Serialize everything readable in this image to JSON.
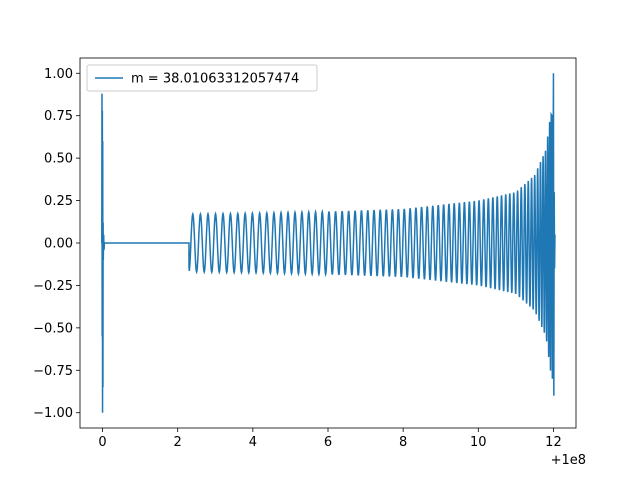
{
  "chart_data": {
    "type": "line",
    "title": "",
    "xlabel": "",
    "ylabel": "",
    "x_offset_label": "+1e8",
    "xlim": [
      -0.6,
      12.6
    ],
    "ylim": [
      -1.09,
      1.09
    ],
    "x_ticks": [
      {
        "value": 0,
        "label": "0"
      },
      {
        "value": 2,
        "label": "2"
      },
      {
        "value": 4,
        "label": "4"
      },
      {
        "value": 6,
        "label": "6"
      },
      {
        "value": 8,
        "label": "8"
      },
      {
        "value": 10,
        "label": "10"
      },
      {
        "value": 12,
        "label": "12"
      }
    ],
    "y_ticks": [
      {
        "value": 1.0,
        "label": "1.00"
      },
      {
        "value": 0.75,
        "label": "0.75"
      },
      {
        "value": 0.5,
        "label": "0.50"
      },
      {
        "value": 0.25,
        "label": "0.25"
      },
      {
        "value": 0.0,
        "label": "0.00"
      },
      {
        "value": -0.25,
        "label": "−0.25"
      },
      {
        "value": -0.5,
        "label": "−0.50"
      },
      {
        "value": -0.75,
        "label": "−0.75"
      },
      {
        "value": -1.0,
        "label": "−1.00"
      }
    ],
    "grid": false,
    "legend_placement": "upper-left",
    "series": [
      {
        "name": "m = 38.01063312057474",
        "color": "#1f77b4",
        "description_points": {
          "initial_burst": {
            "x": 0.0,
            "y_max": 0.88,
            "y_min": -1.0
          },
          "flat_segment": {
            "x_start": 0.05,
            "x_end": 2.3,
            "y": 0.0
          },
          "oscillation_start": {
            "x": 2.3,
            "amplitude": 0.17
          },
          "oscillation_envelope": [
            {
              "x": 2.3,
              "amp": 0.17
            },
            {
              "x": 4.0,
              "amp": 0.175
            },
            {
              "x": 6.0,
              "amp": 0.185
            },
            {
              "x": 8.0,
              "amp": 0.2
            },
            {
              "x": 10.0,
              "amp": 0.25
            },
            {
              "x": 11.0,
              "amp": 0.3
            },
            {
              "x": 11.5,
              "amp": 0.4
            },
            {
              "x": 11.8,
              "amp": 0.55
            },
            {
              "x": 11.95,
              "amp": 0.8
            },
            {
              "x": 12.0,
              "amp": 1.0
            }
          ],
          "merger_peak": {
            "x": 12.0,
            "y_max": 1.0,
            "y_min": -0.9
          }
        }
      }
    ]
  }
}
